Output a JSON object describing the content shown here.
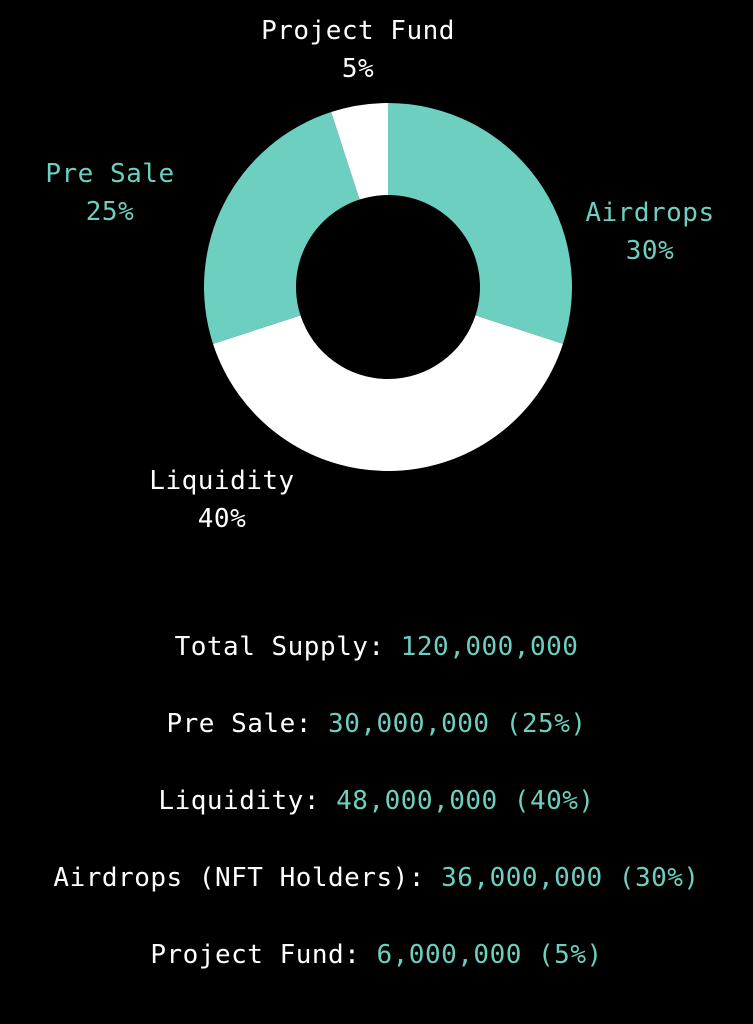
{
  "colors": {
    "background": "#000000",
    "accent": "#6dcfbf",
    "white": "#ffffff"
  },
  "chart_data": {
    "type": "pie",
    "donut": true,
    "title": "",
    "slices": [
      {
        "label": "Airdrops",
        "value": 30,
        "pct_label": "30%",
        "color": "#6dcfbf"
      },
      {
        "label": "Liquidity",
        "value": 40,
        "pct_label": "40%",
        "color": "#ffffff"
      },
      {
        "label": "Pre Sale",
        "value": 25,
        "pct_label": "25%",
        "color": "#6dcfbf"
      },
      {
        "label": "Project Fund",
        "value": 5,
        "pct_label": "5%",
        "color": "#ffffff"
      }
    ]
  },
  "supply": {
    "rows": [
      {
        "label": "Total Supply:",
        "value": "120,000,000"
      },
      {
        "label": "Pre Sale:",
        "value": "30,000,000 (25%)"
      },
      {
        "label": "Liquidity:",
        "value": "48,000,000 (40%)"
      },
      {
        "label": "Airdrops (NFT Holders):",
        "value": "36,000,000 (30%)"
      },
      {
        "label": "Project Fund:",
        "value": "6,000,000 (5%)"
      }
    ]
  }
}
